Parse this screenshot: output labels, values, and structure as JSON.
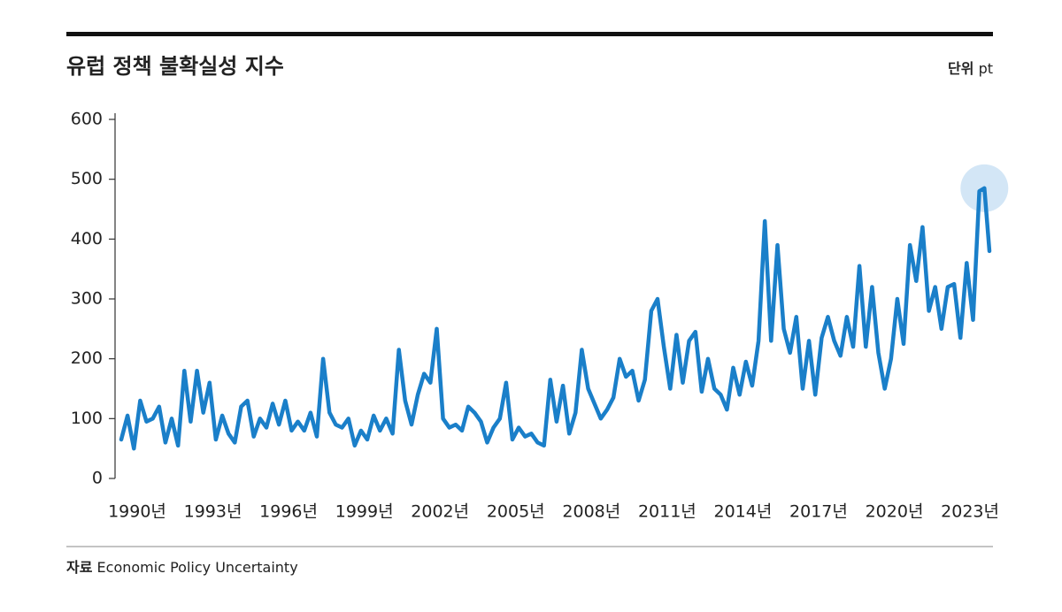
{
  "chart_data": {
    "type": "line",
    "title": "유럽 정책 불확실성 지수",
    "unit_label": "단위",
    "unit": "pt",
    "source_label": "자료",
    "source": "Economic Policy Uncertainty",
    "color": "#1a7fc9",
    "highlight_color": "#d3e6f6",
    "x": [
      1990,
      1990.25,
      1990.5,
      1990.75,
      1991,
      1991.25,
      1991.5,
      1991.75,
      1992,
      1992.25,
      1992.5,
      1992.75,
      1993,
      1993.25,
      1993.5,
      1993.75,
      1994,
      1994.25,
      1994.5,
      1994.75,
      1995,
      1995.25,
      1995.5,
      1995.75,
      1996,
      1996.25,
      1996.5,
      1996.75,
      1997,
      1997.25,
      1997.5,
      1997.75,
      1998,
      1998.25,
      1998.5,
      1998.75,
      1999,
      1999.25,
      1999.5,
      1999.75,
      2000,
      2000.25,
      2000.5,
      2000.75,
      2001,
      2001.25,
      2001.5,
      2001.75,
      2002,
      2002.25,
      2002.5,
      2002.75,
      2003,
      2003.25,
      2003.5,
      2003.75,
      2004,
      2004.25,
      2004.5,
      2004.75,
      2005,
      2005.25,
      2005.5,
      2005.75,
      2006,
      2006.25,
      2006.5,
      2006.75,
      2007,
      2007.25,
      2007.5,
      2007.75,
      2008,
      2008.25,
      2008.5,
      2008.75,
      2009,
      2009.25,
      2009.5,
      2009.75,
      2010,
      2010.25,
      2010.5,
      2010.75,
      2011,
      2011.25,
      2011.5,
      2011.75,
      2012,
      2012.25,
      2012.5,
      2012.75,
      2013,
      2013.25,
      2013.5,
      2013.75,
      2014,
      2014.25,
      2014.5,
      2014.75,
      2015,
      2015.25,
      2015.5,
      2015.75,
      2016,
      2016.25,
      2016.5,
      2016.75,
      2017,
      2017.25,
      2017.5,
      2017.75,
      2018,
      2018.25,
      2018.5,
      2018.75,
      2019,
      2019.25,
      2019.5,
      2019.75,
      2020,
      2020.25,
      2020.5,
      2020.75,
      2021,
      2021.25,
      2021.5,
      2021.75,
      2022,
      2022.25,
      2022.5,
      2022.75,
      2023,
      2023.25,
      2023.5,
      2023.75,
      2024,
      2024.2,
      2024.4
    ],
    "values": [
      65,
      105,
      50,
      130,
      95,
      100,
      120,
      60,
      100,
      55,
      180,
      95,
      180,
      110,
      160,
      65,
      105,
      75,
      60,
      120,
      130,
      70,
      100,
      85,
      125,
      90,
      130,
      80,
      95,
      80,
      110,
      70,
      200,
      110,
      90,
      85,
      100,
      55,
      80,
      65,
      105,
      80,
      100,
      75,
      215,
      130,
      90,
      140,
      175,
      160,
      250,
      100,
      85,
      90,
      80,
      120,
      110,
      95,
      60,
      85,
      100,
      160,
      65,
      85,
      70,
      75,
      60,
      55,
      165,
      95,
      155,
      75,
      110,
      215,
      150,
      125,
      100,
      115,
      135,
      200,
      170,
      180,
      130,
      165,
      280,
      300,
      220,
      150,
      240,
      160,
      230,
      245,
      145,
      200,
      150,
      140,
      115,
      185,
      140,
      195,
      155,
      230,
      430,
      230,
      390,
      250,
      210,
      270,
      150,
      230,
      140,
      235,
      270,
      230,
      205,
      270,
      220,
      355,
      220,
      320,
      210,
      150,
      200,
      300,
      225,
      390,
      330,
      420,
      280,
      320,
      250,
      320,
      325,
      235,
      360,
      265,
      480,
      485,
      380
    ],
    "xlim": [
      1990,
      2024.4
    ],
    "xticks": [
      {
        "value": 1990,
        "label": "1990년"
      },
      {
        "value": 1993,
        "label": "1993년"
      },
      {
        "value": 1996,
        "label": "1996년"
      },
      {
        "value": 1999,
        "label": "1999년"
      },
      {
        "value": 2002,
        "label": "2002년"
      },
      {
        "value": 2005,
        "label": "2005년"
      },
      {
        "value": 2008,
        "label": "2008년"
      },
      {
        "value": 2011,
        "label": "2011년"
      },
      {
        "value": 2014,
        "label": "2014년"
      },
      {
        "value": 2017,
        "label": "2017년"
      },
      {
        "value": 2020,
        "label": "2020년"
      },
      {
        "value": 2023,
        "label": "2023년"
      }
    ],
    "ylim": [
      0,
      600
    ],
    "yticks": [
      0,
      100,
      200,
      300,
      400,
      500,
      600
    ]
  }
}
